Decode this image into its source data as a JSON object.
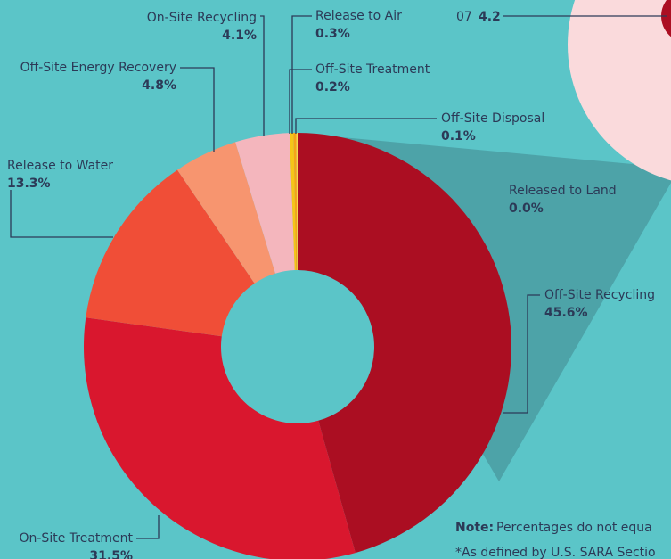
{
  "chart_data": {
    "type": "pie",
    "categories": [
      "Off-Site Recycling",
      "On-Site Treatment",
      "Release to Water",
      "Off-Site Energy Recovery",
      "On-Site Recycling",
      "Release to Air",
      "Off-Site Treatment",
      "Off-Site Disposal",
      "Released to Land"
    ],
    "values": [
      45.6,
      31.5,
      13.3,
      4.8,
      4.1,
      0.3,
      0.2,
      0.1,
      0.0
    ],
    "value_labels": [
      "45.6%",
      "31.5%",
      "13.3%",
      "4.8%",
      "4.1%",
      "0.3%",
      "0.2%",
      "0.1%",
      "0.0%"
    ],
    "colors": [
      "#ab0e22",
      "#d9172e",
      "#f04e37",
      "#f7956f",
      "#f4b6bd",
      "#f5c518",
      "#f6a21a",
      "#f9d84a",
      "#8a5a2b"
    ],
    "inset": {
      "label": "07",
      "value": 4.2
    },
    "note": {
      "label": "Note:",
      "text": "Percentages do not equa",
      "footnote": "*As defined by U.S. SARA Sectio"
    }
  }
}
